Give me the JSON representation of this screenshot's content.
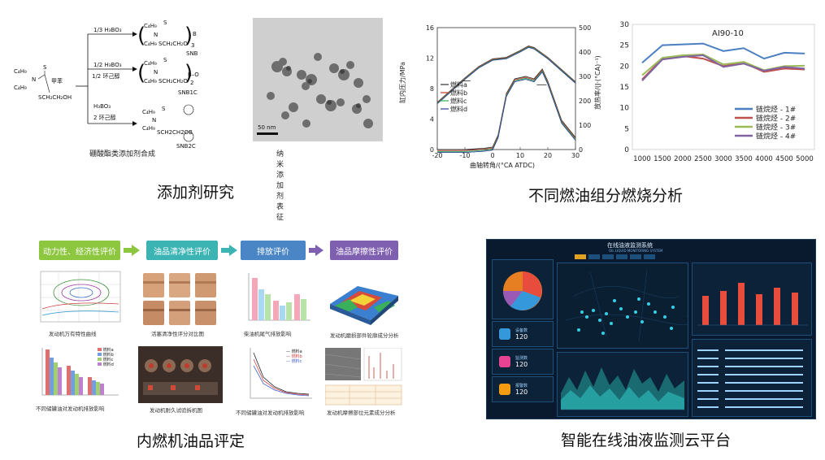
{
  "captions": {
    "top_left": "添加剂研究",
    "top_right": "不同燃油组分燃烧分析",
    "bottom_left": "内燃机油品评定",
    "bottom_right": "智能在线油液监测云平台"
  },
  "additive": {
    "synthesis_caption": "硼酸酯类添加剂合成",
    "tem_caption": "纳米添加剂表征",
    "scale_bar": "50 nm",
    "reactant_label": "SCH₂CH₂OH",
    "solvent_label": "甲苯",
    "routes": [
      {
        "reagent": "1/3 H₃BO₃",
        "extra": "",
        "product": "SNB",
        "suffix": "B",
        "sub": "3"
      },
      {
        "reagent": "1/2 H₃BO₃",
        "extra": "1/2 环己醇",
        "product": "SNB1C",
        "suffix": "B—O—",
        "sub": "2"
      },
      {
        "reagent": "H₃BO₃",
        "extra": "2 环己醇",
        "product": "SNB2C",
        "suffix": "",
        "sub": ""
      }
    ],
    "c4h9": "C₄H₉",
    "ch2_chain": "SCH₂CH₂O",
    "s_label": "S",
    "n_label": "N"
  },
  "combustion": {
    "yaxis_left": "缸内压力/MPa",
    "yaxis_right": "放热率/(J·(°CA)⁻¹)",
    "xaxis": "曲轴转角/(°CA ATDC)",
    "legend": [
      "燃料a",
      "燃料b",
      "燃料c",
      "燃料d"
    ]
  },
  "ai90": {
    "title": "AI90-10",
    "legend": [
      "链烷烃 - 1#",
      "链烷烃 - 2#",
      "链烷烃 - 3#",
      "链烷烃 - 4#"
    ]
  },
  "evaluation": {
    "stages": [
      "动力性、经济性评价",
      "油品清净性评价",
      "排放评价",
      "油品摩擦性评价"
    ],
    "thumb_captions": [
      "发动机万有特性曲线",
      "活塞清净性评分对比图",
      "柴油机尾气排放影响",
      "发动机磨损部件轮廓成分分析",
      "不同储罐油对发动机排放影响",
      "发动机耐久试验拆机图",
      "不同储罐油对发动机排放影响",
      "发动机摩擦部位元素成分分析"
    ],
    "fuel_legend": [
      "燃料a",
      "燃料b",
      "燃料c",
      "燃料d"
    ],
    "emission_legend": [
      "燃料a",
      "燃料b",
      "燃料c"
    ]
  },
  "dashboard": {
    "title": "在线油液监测系统",
    "subtitle": "OIL LIQUID MONITORING SYSTEM",
    "stat_cards": [
      {
        "label": "设备数",
        "value": "120"
      },
      {
        "label": "监测数",
        "value": "120"
      },
      {
        "label": "报警数",
        "value": "120"
      }
    ]
  },
  "colors": {
    "green_stage": "#8dc63f",
    "teal_stage": "#3cb4b4",
    "blue_stage": "#4a86c5",
    "purple_stage": "#7e5fb0",
    "series1": "#4a7fc1",
    "series2": "#c0504d",
    "series3": "#9bbb59",
    "series4": "#8064a2"
  },
  "chart_data": [
    {
      "type": "line",
      "title": "",
      "xlabel": "曲轴转角/(°CA ATDC)",
      "ylabel": "缸内压力/MPa",
      "y2label": "放热率/(J·(°CA)⁻¹)",
      "xlim": [
        -20,
        30
      ],
      "ylim": [
        0,
        16
      ],
      "y2lim": [
        0,
        500
      ],
      "x_ticks": [
        -20,
        -10,
        0,
        10,
        20,
        30
      ],
      "y_ticks": [
        0,
        4,
        8,
        12,
        16
      ],
      "y2_ticks": [
        0,
        100,
        200,
        300,
        400,
        500
      ],
      "series": [
        {
          "name": "燃料a",
          "x": [
            -20,
            -15,
            -10,
            -5,
            0,
            5,
            10,
            13,
            15,
            20,
            25,
            30
          ],
          "values": [
            6.2,
            7.8,
            9.4,
            10.9,
            11.9,
            12.1,
            13.0,
            13.6,
            13.4,
            12.1,
            10.5,
            8.9
          ]
        },
        {
          "name": "燃料b",
          "x": [
            -20,
            -15,
            -10,
            -5,
            0,
            5,
            10,
            13,
            15,
            20,
            25,
            30
          ],
          "values": [
            6.2,
            7.8,
            9.4,
            10.9,
            11.9,
            12.1,
            13.0,
            13.6,
            13.4,
            12.1,
            10.5,
            8.9
          ]
        },
        {
          "name": "燃料c",
          "x": [
            -20,
            -15,
            -10,
            -5,
            0,
            5,
            10,
            13,
            15,
            20,
            25,
            30
          ],
          "values": [
            6.2,
            7.8,
            9.4,
            10.9,
            11.9,
            12.1,
            13.0,
            13.6,
            13.4,
            12.1,
            10.5,
            8.9
          ]
        },
        {
          "name": "燃料d",
          "x": [
            -20,
            -15,
            -10,
            -5,
            0,
            5,
            10,
            13,
            15,
            20,
            25,
            30
          ],
          "values": [
            6.2,
            7.8,
            9.4,
            10.9,
            11.9,
            12.1,
            13.0,
            13.6,
            13.4,
            12.1,
            10.5,
            8.9
          ]
        }
      ],
      "heat_release": {
        "x": [
          -20,
          -10,
          -3,
          0,
          2,
          5,
          8,
          12,
          15,
          18,
          20,
          25,
          30
        ],
        "values": [
          0,
          0,
          5,
          10,
          60,
          230,
          290,
          300,
          290,
          330,
          280,
          120,
          50
        ]
      }
    },
    {
      "type": "line",
      "title": "AI90-10",
      "xlabel": "",
      "ylabel": "",
      "categories": [
        1000,
        1500,
        2000,
        2500,
        3000,
        3500,
        4000,
        4500,
        5000
      ],
      "ylim": [
        0,
        30
      ],
      "y_ticks": [
        0,
        5,
        10,
        15,
        20,
        25,
        30
      ],
      "legend_position": "bottom-right",
      "series": [
        {
          "name": "链烷烃 - 1#",
          "values": [
            20.8,
            25.0,
            25.2,
            25.4,
            23.6,
            24.3,
            21.8,
            23.2,
            23.0
          ]
        },
        {
          "name": "链烷烃 - 2#",
          "values": [
            16.8,
            21.8,
            22.4,
            21.8,
            20.0,
            20.8,
            18.6,
            19.4,
            19.2
          ]
        },
        {
          "name": "链烷烃 - 3#",
          "values": [
            17.8,
            22.0,
            22.6,
            22.8,
            20.4,
            21.0,
            19.0,
            20.0,
            20.1
          ]
        },
        {
          "name": "链烷烃 - 4#",
          "values": [
            16.5,
            21.6,
            22.2,
            22.6,
            19.8,
            20.6,
            18.9,
            19.8,
            19.4
          ]
        }
      ]
    }
  ]
}
